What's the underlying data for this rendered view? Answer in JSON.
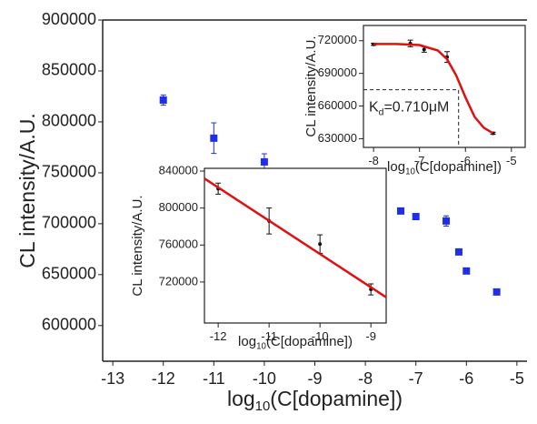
{
  "chart_data": [
    {
      "type": "scatter",
      "x_label": {
        "base": "log",
        "sub": "10",
        "rest": "(C[dopamine])"
      },
      "y_label": "CL intensity/A.U.",
      "xlim": [
        -13.2,
        -4.8
      ],
      "ylim": [
        565000,
        900000
      ],
      "xticks": [
        -13,
        -12,
        -11,
        -10,
        -9,
        -8,
        -7,
        -6,
        -5
      ],
      "yticks": [
        600000,
        650000,
        700000,
        750000,
        800000,
        850000,
        900000
      ],
      "series": [
        {
          "color": "#1f2ee8",
          "marker": "square",
          "x": [
            -12,
            -11,
            -10,
            -9,
            -8,
            -7.3,
            -7,
            -6.4,
            -6.15,
            -6.0,
            -5.4
          ],
          "values": [
            821400,
            784000,
            760700,
            709000,
            711600,
            712500,
            707000,
            702700,
            672300,
            653600,
            633000
          ],
          "errors": [
            5000,
            15000,
            8000,
            4000,
            1500,
            2500,
            1500,
            5000,
            1500,
            2500,
            1500
          ]
        }
      ]
    },
    {
      "type": "scatter",
      "x_label": {
        "base": "log",
        "sub": "10",
        "rest": "(C[dopamine])"
      },
      "y_label": "CL intensity/A.U.",
      "xlim": [
        -12.27,
        -8.7
      ],
      "ylim": [
        675600,
        843000
      ],
      "xticks": [
        -12,
        -11,
        -10,
        -9
      ],
      "yticks": [
        720000,
        760000,
        800000,
        840000
      ],
      "series": [
        {
          "color": "#111111",
          "marker": "dot",
          "x": [
            -12,
            -11,
            -10,
            -9
          ],
          "values": [
            821000,
            786000,
            761000,
            712000
          ],
          "errors": [
            6000,
            14000,
            10000,
            6000
          ]
        },
        {
          "color": "#e01010",
          "marker": "line",
          "x": [
            -12.27,
            -8.7
          ],
          "values": [
            832000,
            703500
          ]
        }
      ]
    },
    {
      "type": "scatter",
      "x_label": {
        "base": "log",
        "sub": "10",
        "rest": "(C[dopamine])"
      },
      "y_label": "CL intensity/A.U.",
      "xlim": [
        -8.22,
        -4.7
      ],
      "ylim": [
        622000,
        734000
      ],
      "xticks": [
        -8,
        -7,
        -6,
        -5
      ],
      "yticks": [
        630000,
        660000,
        690000,
        720000
      ],
      "annotation": {
        "base": "K",
        "sub": "d",
        "rest": "=0.710μM"
      },
      "reference": {
        "x": -6.15,
        "y": 675000
      },
      "series": [
        {
          "color": "#111111",
          "marker": "dot",
          "x": [
            -8,
            -7.2,
            -6.9,
            -6.4,
            -5.4
          ],
          "values": [
            716700,
            717500,
            712000,
            705000,
            635000
          ],
          "errors": [
            1000,
            3000,
            2500,
            5000,
            1000
          ]
        },
        {
          "color": "#e01010",
          "marker": "line",
          "x": [
            -8.0,
            -7.5,
            -7.0,
            -6.6,
            -6.4,
            -6.2,
            -6.0,
            -5.8,
            -5.6,
            -5.4
          ],
          "values": [
            717000,
            717000,
            716000,
            711000,
            703000,
            688000,
            668000,
            650000,
            640000,
            635000
          ]
        }
      ]
    }
  ]
}
